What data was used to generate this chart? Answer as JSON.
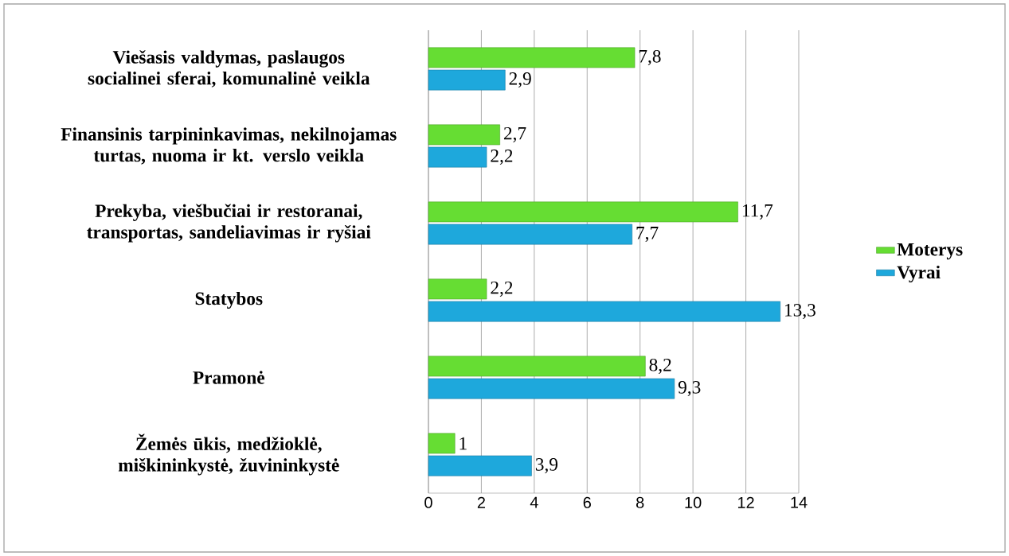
{
  "chart_data": {
    "type": "bar",
    "orientation": "horizontal",
    "categories": [
      "Viešasis valdymas, paslaugos socialinei sferai, komunalinė veikla",
      "Finansinis tarpininkavimas, nekilnojamas turtas, nuoma ir kt. verslo veikla",
      "Prekyba, viešbučiai ir restoranai, transportas, sandeliavimas ir ryšiai",
      "Statybos",
      "Pramonė",
      "Žemės ūkis, medžioklė, miškininkystė, žuvininkystė"
    ],
    "series": [
      {
        "name": "Moterys",
        "color": "#66dd33",
        "values": [
          7.8,
          2.7,
          11.7,
          2.2,
          8.2,
          1
        ],
        "value_labels": [
          "7,8",
          "2,7",
          "11,7",
          "2,2",
          "8,2",
          "1"
        ]
      },
      {
        "name": "Vyrai",
        "color": "#1ea8dc",
        "values": [
          2.9,
          2.2,
          7.7,
          13.3,
          9.3,
          3.9
        ],
        "value_labels": [
          "2,9",
          "2,2",
          "7,7",
          "13,3",
          "9,3",
          "3,9"
        ]
      }
    ],
    "xlim": [
      0,
      14
    ],
    "xticks": [
      0,
      2,
      4,
      6,
      8,
      10,
      12,
      14
    ],
    "grid": "x",
    "legend": "right"
  }
}
